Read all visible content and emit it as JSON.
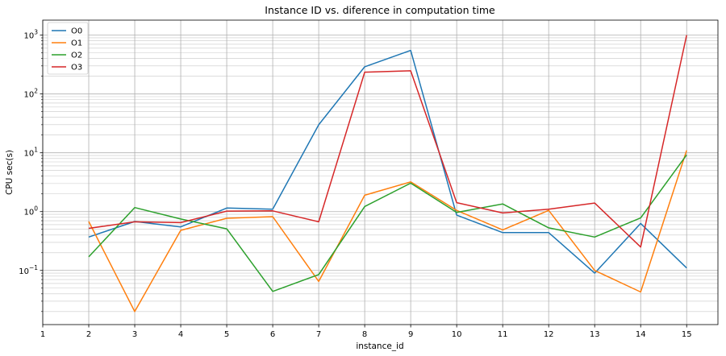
{
  "chart_data": {
    "type": "line",
    "title": "Instance ID vs. diference in computation time",
    "xlabel": "instance_id",
    "ylabel": "CPU sec(s)",
    "y_scale": "log",
    "xlim": [
      1,
      15.68
    ],
    "ylim": [
      0.012,
      1800
    ],
    "grid": true,
    "legend_position": "top-left",
    "x_ticks": [
      1,
      2,
      3,
      4,
      5,
      6,
      7,
      8,
      9,
      10,
      11,
      12,
      13,
      14,
      15
    ],
    "y_ticks": [
      {
        "value": 0.1,
        "base": "10",
        "exp": "−1"
      },
      {
        "value": 1,
        "base": "10",
        "exp": "0"
      },
      {
        "value": 10,
        "base": "10",
        "exp": "1"
      },
      {
        "value": 100,
        "base": "10",
        "exp": "2"
      },
      {
        "value": 1000,
        "base": "10",
        "exp": "3"
      }
    ],
    "x": [
      2,
      3,
      4,
      5,
      6,
      7,
      8,
      9,
      10,
      11,
      12,
      13,
      14,
      15
    ],
    "series": [
      {
        "name": "O0",
        "color": "#1f77b4",
        "values": [
          0.37,
          0.68,
          0.55,
          1.15,
          1.1,
          30,
          290,
          550,
          0.87,
          0.44,
          0.44,
          0.09,
          0.63,
          0.11
        ]
      },
      {
        "name": "O1",
        "color": "#ff7f0e",
        "values": [
          0.68,
          0.02,
          0.48,
          0.77,
          0.82,
          0.065,
          1.9,
          3.2,
          1.05,
          0.49,
          1.05,
          0.1,
          0.043,
          11
        ]
      },
      {
        "name": "O2",
        "color": "#2ca02c",
        "values": [
          0.17,
          1.17,
          0.75,
          0.51,
          0.044,
          0.085,
          1.22,
          3.05,
          0.97,
          1.35,
          0.53,
          0.37,
          0.78,
          9.2
        ]
      },
      {
        "name": "O3",
        "color": "#d62728",
        "values": [
          0.52,
          0.67,
          0.65,
          1.02,
          1.03,
          0.67,
          235,
          248,
          1.42,
          0.95,
          1.1,
          1.4,
          0.25,
          1000
        ]
      }
    ]
  }
}
